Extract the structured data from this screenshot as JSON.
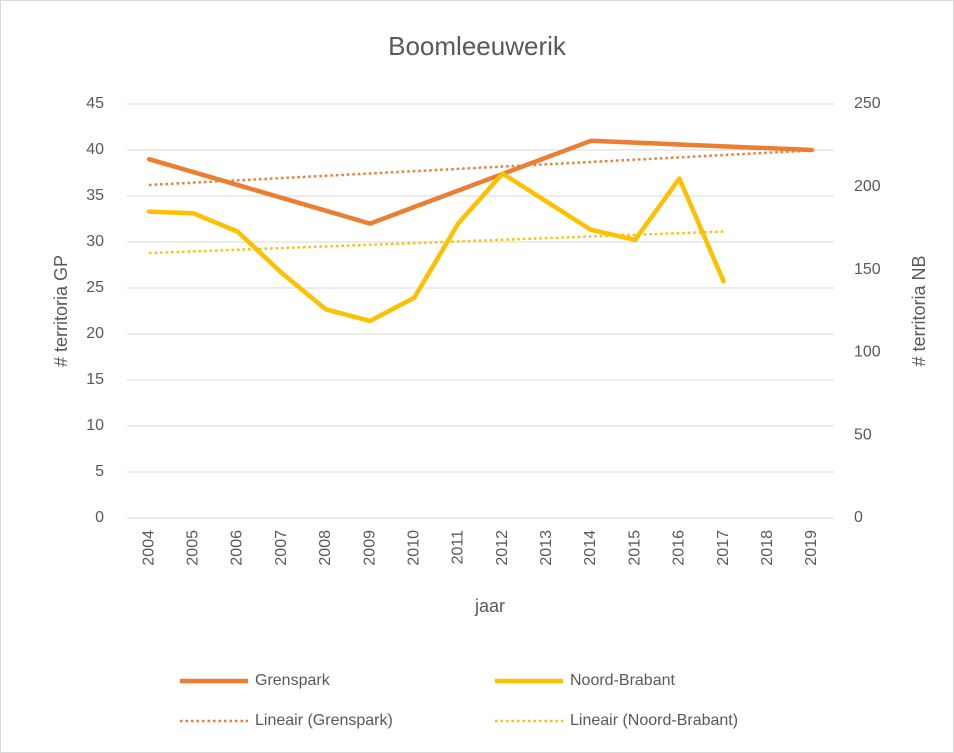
{
  "chart_data": {
    "type": "line",
    "title": "Boomleeuwerik",
    "x_label": "jaar",
    "y_label": "# territoria GP",
    "y2_label": "# territoria NB",
    "categories": [
      "2004",
      "2005",
      "2006",
      "2007",
      "2008",
      "2009",
      "2010",
      "2011",
      "2012",
      "2013",
      "2014",
      "2015",
      "2016",
      "2017",
      "2018",
      "2019"
    ],
    "ylim": [
      0,
      45
    ],
    "yticks": [
      0,
      5,
      10,
      15,
      20,
      25,
      30,
      35,
      40,
      45
    ],
    "y2lim": [
      0,
      250
    ],
    "y2ticks": [
      0,
      50,
      100,
      150,
      200,
      250
    ],
    "grid": true,
    "legend": "bottom",
    "series": [
      {
        "name": "Grenspark",
        "color": "#ed7d31",
        "style": "solid",
        "axis": "y",
        "values": [
          39,
          37.6,
          36.2,
          34.8,
          33.4,
          32,
          33.8,
          35.6,
          37.4,
          39.2,
          41,
          40.8,
          40.6,
          40.4,
          40.2,
          40
        ]
      },
      {
        "name": "Noord-Brabant",
        "color": "#ffc000",
        "style": "solid",
        "axis": "y2",
        "values": [
          185,
          184,
          173,
          148,
          126,
          119,
          133,
          178,
          208,
          191,
          174,
          168,
          205,
          143,
          null,
          null
        ]
      },
      {
        "name": "Lineair (Grenspark)",
        "color": "#ed7d31",
        "style": "dotted",
        "axis": "y",
        "values": [
          36.2,
          36.45,
          36.7,
          36.95,
          37.2,
          37.45,
          37.7,
          37.95,
          38.2,
          38.45,
          38.7,
          38.95,
          39.2,
          39.45,
          39.7,
          39.95
        ]
      },
      {
        "name": "Lineair (Noord-Brabant)",
        "color": "#ffc000",
        "style": "dotted",
        "axis": "y2",
        "values": [
          160,
          161,
          162,
          163,
          164,
          165,
          166,
          167,
          168,
          169,
          170,
          171,
          172,
          173,
          null,
          null
        ]
      }
    ]
  }
}
